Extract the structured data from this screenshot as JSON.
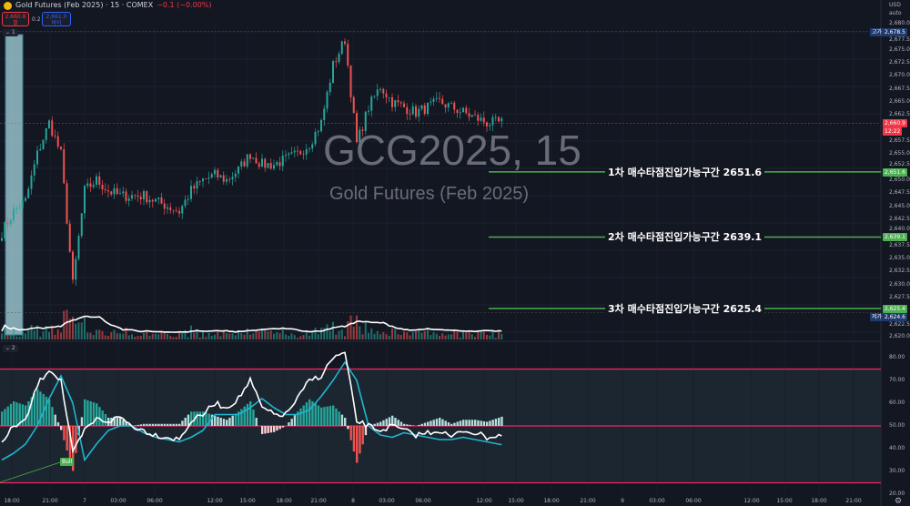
{
  "header": {
    "symbol_title": "Gold Futures (Feb 2025) · 15 · COMEX",
    "change": "−0.1 (−0.00%)",
    "sell_price": "2,660.8",
    "sell_label": "팔",
    "spread": "0.2",
    "buy_price": "2,661.0",
    "buy_label": "바이",
    "pane1_tag": "⌄ 1",
    "pane2_tag": "⌄ 2"
  },
  "watermark": {
    "line1": "GCG2025, 15",
    "line2": "Gold Futures (Feb 2025)"
  },
  "price_axis": {
    "currency": "USD",
    "scale": "auto",
    "ticks": [
      "2,680.0",
      "2,677.5",
      "2,675.0",
      "2,672.5",
      "2,670.0",
      "2,667.5",
      "2,665.0",
      "2,662.5",
      "2,657.5",
      "2,655.0",
      "2,652.5",
      "2,650.0",
      "2,647.5",
      "2,645.0",
      "2,642.5",
      "2,640.0",
      "2,637.5",
      "2,635.0",
      "2,632.5",
      "2,630.0",
      "2,627.5",
      "2,622.5",
      "2,620.0"
    ],
    "high_label": "고가",
    "high_value": "2,678.5",
    "low_label": "저가",
    "low_value": "2,624.6",
    "last_price": "2,660.9",
    "countdown": "12:22"
  },
  "levels": [
    {
      "label": "1차 매수타점진입가능구간 2651.6",
      "price": 2651.6,
      "tag": "2,651.6"
    },
    {
      "label": "2차 매수타점진입가능구간 2639.1",
      "price": 2639.1,
      "tag": "2,639.1"
    },
    {
      "label": "3차 매수타점진입가능구간 2625.4",
      "price": 2625.4,
      "tag": "2,625.4"
    }
  ],
  "osc_axis": {
    "ticks": [
      "80.00",
      "70.00",
      "60.00",
      "50.00",
      "40.00",
      "30.00",
      "20.00"
    ],
    "bands": [
      75,
      50,
      25
    ],
    "signal_label": "Bull"
  },
  "time_axis": [
    "18:00",
    "21:00",
    "7",
    "03:00",
    "06:00",
    "12:00",
    "15:00",
    "18:00",
    "21:00",
    "8",
    "03:00",
    "06:00",
    "12:00",
    "15:00",
    "18:00",
    "21:00",
    "9",
    "03:00",
    "06:00",
    "12:00",
    "15:00",
    "18:00",
    "21:00"
  ],
  "colors": {
    "up": "#26a69a",
    "down": "#ef5350",
    "level": "#4caf50",
    "band": "#f7245f",
    "fast": "#ffffff",
    "slow": "#1fb5d1",
    "bg": "#131722"
  },
  "chart_data": {
    "type": "candlestick",
    "interval": "15",
    "price_range": [
      2620,
      2680
    ],
    "closes_sampled": [
      2640,
      2644,
      2646,
      2655,
      2661,
      2655,
      2630,
      2648,
      2650,
      2648,
      2647,
      2647,
      2647,
      2646,
      2645,
      2644,
      2648,
      2650,
      2651,
      2650,
      2652,
      2655,
      2653,
      2653,
      2654,
      2655,
      2657,
      2661,
      2672,
      2677,
      2657,
      2664,
      2668,
      2665,
      2664,
      2663,
      2664,
      2665,
      2664,
      2663,
      2662,
      2661,
      2661
    ],
    "osc_fast": [
      42,
      50,
      52,
      68,
      75,
      70,
      38,
      48,
      53,
      52,
      54,
      50,
      48,
      46,
      45,
      44,
      52,
      55,
      60,
      58,
      62,
      70,
      58,
      55,
      55,
      62,
      70,
      72,
      80,
      82,
      52,
      50,
      48,
      50,
      48,
      46,
      47,
      48,
      45,
      48,
      47,
      45,
      46
    ],
    "osc_slow": [
      35,
      38,
      42,
      50,
      62,
      72,
      60,
      35,
      42,
      48,
      50,
      50,
      47,
      45,
      44,
      43,
      45,
      48,
      55,
      55,
      55,
      58,
      62,
      58,
      55,
      55,
      57,
      63,
      70,
      78,
      70,
      50,
      46,
      45,
      47,
      46,
      45,
      44,
      44,
      45,
      44,
      43,
      42
    ],
    "osc_range": [
      20,
      80
    ]
  }
}
